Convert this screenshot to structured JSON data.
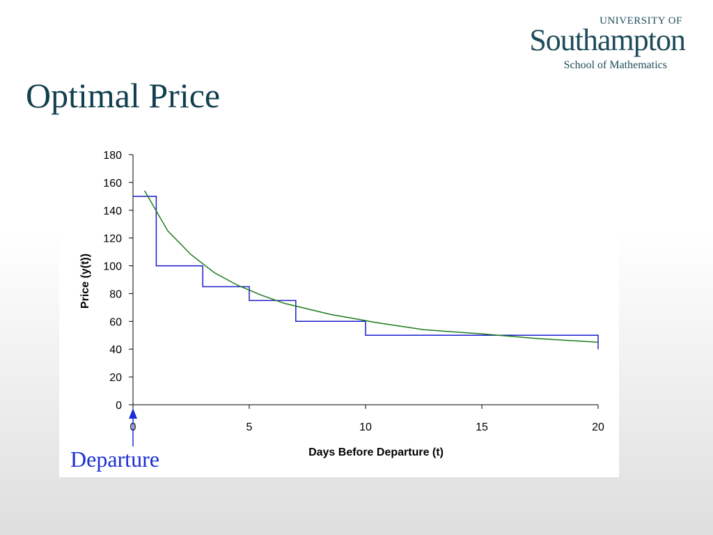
{
  "logo": {
    "university": "UNIVERSITY OF",
    "name": "Southampton",
    "school": "School of Mathematics"
  },
  "slide": {
    "title": "Optimal Price"
  },
  "annotation": {
    "label": "Departure",
    "color": "#1a2fd4"
  },
  "colors": {
    "title": "#123f4f",
    "step": "#1a1acc",
    "curve": "#1a7a1a"
  },
  "chart_data": {
    "type": "line",
    "xlabel": "Days Before Departure (t)",
    "ylabel": "Price (y(t))",
    "xlim": [
      0,
      20
    ],
    "ylim": [
      0,
      180
    ],
    "xticks": [
      0,
      5,
      10,
      15,
      20
    ],
    "yticks": [
      0,
      20,
      40,
      60,
      80,
      100,
      120,
      140,
      160,
      180
    ],
    "grid": false,
    "legend": "none",
    "series": [
      {
        "kind": "step",
        "color": "#1a1acc",
        "points": [
          [
            0,
            150
          ],
          [
            1,
            150
          ],
          [
            1,
            100
          ],
          [
            3,
            100
          ],
          [
            3,
            85
          ],
          [
            5,
            85
          ],
          [
            5,
            75
          ],
          [
            7,
            75
          ],
          [
            7,
            60
          ],
          [
            10,
            60
          ],
          [
            10,
            50
          ],
          [
            20,
            50
          ],
          [
            20,
            40
          ]
        ]
      },
      {
        "kind": "curve",
        "color": "#1a7a1a",
        "points": [
          [
            0.5,
            154
          ],
          [
            1.5,
            125
          ],
          [
            2.5,
            108
          ],
          [
            3.5,
            95
          ],
          [
            4.5,
            86
          ],
          [
            5.5,
            79
          ],
          [
            6.5,
            73
          ],
          [
            7.5,
            69
          ],
          [
            8.5,
            65
          ],
          [
            9.5,
            62
          ],
          [
            10.5,
            59
          ],
          [
            12.5,
            54
          ],
          [
            15,
            51
          ],
          [
            17.5,
            47.5
          ],
          [
            20,
            45
          ]
        ]
      }
    ]
  }
}
